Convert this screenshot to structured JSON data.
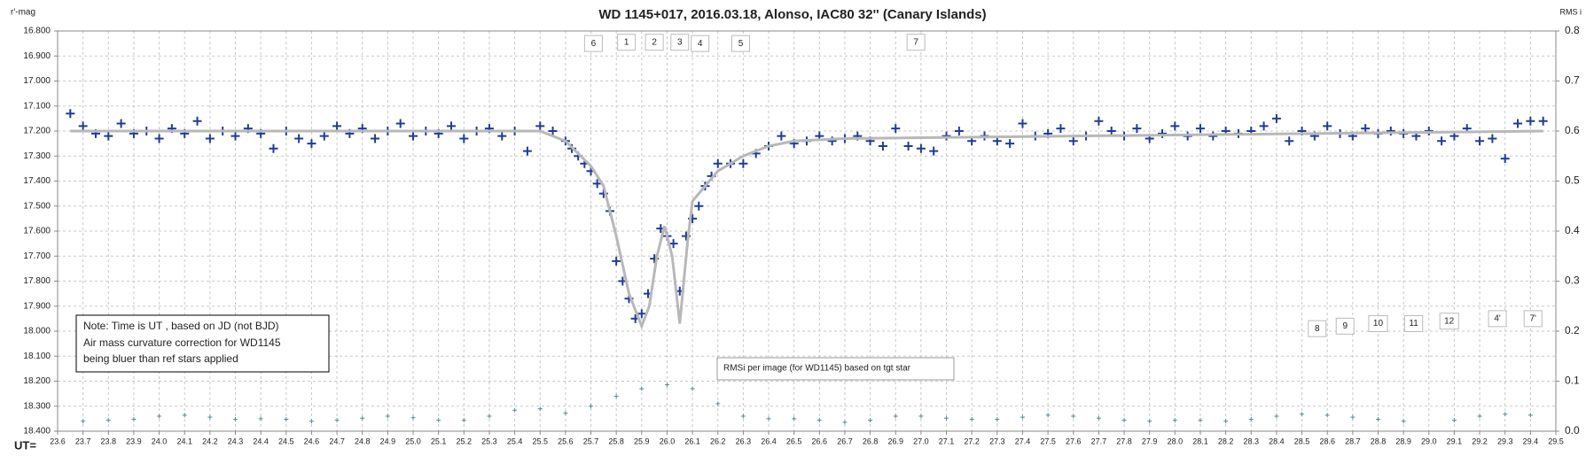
{
  "chart_data": {
    "type": "scatter",
    "title": "WD 1145+017,  2016.03.18,  Alonso,  IAC80  32'' (Canary Islands)",
    "y_label": "r'-mag",
    "y2_label": "RMS i",
    "x_label": "UT=",
    "note": [
      "Note: Time is UT , based on JD (not BJD)",
      "Air mass  curvature correction for WD1145",
      "being bluer than ref stars applied"
    ],
    "rms_note": "RMSi per image (for WD1145) based on tgt star",
    "xlim": [
      23.6,
      29.5
    ],
    "ylim": [
      16.8,
      18.4
    ],
    "y_inverted": true,
    "y2lim": [
      0,
      0.8
    ],
    "grid": true,
    "xticks": [
      23.6,
      23.7,
      23.8,
      23.9,
      {
        "value": 24,
        "label": "24.0"
      },
      24.1,
      24.2,
      24.3,
      24.4,
      24.5,
      24.6,
      24.7,
      24.8,
      24.9,
      {
        "value": 25,
        "label": "25.0"
      },
      25.1,
      25.2,
      25.3,
      25.4,
      25.5,
      25.6,
      25.7,
      25.8,
      25.9,
      {
        "value": 26,
        "label": "26.0"
      },
      26.1,
      26.2,
      26.3,
      26.4,
      26.5,
      26.6,
      26.7,
      26.8,
      26.9,
      {
        "value": 27,
        "label": "27.0"
      },
      27.1,
      27.2,
      27.3,
      27.4,
      27.5,
      27.6,
      27.7,
      27.8,
      27.9,
      {
        "value": 28,
        "label": "28.0"
      },
      28.1,
      28.2,
      28.3,
      28.4,
      28.5,
      28.6,
      28.7,
      28.8,
      28.9,
      {
        "value": 29,
        "label": "29.0"
      },
      29.1,
      29.2,
      29.3,
      29.4,
      29.5
    ],
    "yticks": [
      {
        "value": 16.8,
        "label": "16.800"
      },
      {
        "value": 16.9,
        "label": "16.900"
      },
      {
        "value": 17.0,
        "label": "17.000"
      },
      {
        "value": 17.1,
        "label": "17.100"
      },
      {
        "value": 17.2,
        "label": "17.200"
      },
      {
        "value": 17.3,
        "label": "17.300"
      },
      {
        "value": 17.4,
        "label": "17.400"
      },
      {
        "value": 17.5,
        "label": "17.500"
      },
      {
        "value": 17.6,
        "label": "17.600"
      },
      {
        "value": 17.7,
        "label": "17.700"
      },
      {
        "value": 17.8,
        "label": "17.800"
      },
      {
        "value": 17.9,
        "label": "17.900"
      },
      {
        "value": 18.0,
        "label": "18.000"
      },
      {
        "value": 18.1,
        "label": "18.100"
      },
      {
        "value": 18.2,
        "label": "18.200"
      },
      {
        "value": 18.3,
        "label": "18.300"
      },
      {
        "value": 18.4,
        "label": "18.400"
      }
    ],
    "y2ticks": [
      {
        "value": 0,
        "label": "0.0"
      },
      {
        "value": 0.1,
        "label": "0.1"
      },
      {
        "value": 0.2,
        "label": "0.2"
      },
      {
        "value": 0.3,
        "label": "0.3"
      },
      {
        "value": 0.4,
        "label": "0.4"
      },
      {
        "value": 0.5,
        "label": "0.5"
      },
      {
        "value": 0.6,
        "label": "0.6"
      },
      {
        "value": 0.7,
        "label": "0.7"
      },
      {
        "value": 0.8,
        "label": "0.8"
      }
    ],
    "series": [
      {
        "style": "markers",
        "color": "#1f3c99",
        "x": [
          23.65,
          23.7,
          23.75,
          23.8,
          23.85,
          23.9,
          23.95,
          24.0,
          24.05,
          24.1,
          24.15,
          24.2,
          24.25,
          24.3,
          24.35,
          24.4,
          24.45,
          24.5,
          24.55,
          24.6,
          24.65,
          24.7,
          24.75,
          24.8,
          24.85,
          24.9,
          24.95,
          25.0,
          25.05,
          25.1,
          25.15,
          25.2,
          25.25,
          25.3,
          25.35,
          25.4,
          25.45,
          25.5,
          25.55,
          25.6,
          25.625,
          25.65,
          25.675,
          25.7,
          25.725,
          25.75,
          25.775,
          25.8,
          25.825,
          25.85,
          25.875,
          25.9,
          25.925,
          25.95,
          25.975,
          26.0,
          26.025,
          26.05,
          26.075,
          26.1,
          26.125,
          26.15,
          26.175,
          26.2,
          26.25,
          26.3,
          26.35,
          26.4,
          26.45,
          26.5,
          26.55,
          26.6,
          26.65,
          26.7,
          26.75,
          26.8,
          26.85,
          26.9,
          26.95,
          27.0,
          27.05,
          27.1,
          27.15,
          27.2,
          27.25,
          27.3,
          27.35,
          27.4,
          27.45,
          27.5,
          27.55,
          27.6,
          27.65,
          27.7,
          27.75,
          27.8,
          27.85,
          27.9,
          27.95,
          28.0,
          28.05,
          28.1,
          28.15,
          28.2,
          28.25,
          28.3,
          28.35,
          28.4,
          28.45,
          28.5,
          28.55,
          28.6,
          28.65,
          28.7,
          28.75,
          28.8,
          28.85,
          28.9,
          28.95,
          29.0,
          29.05,
          29.1,
          29.15,
          29.2,
          29.25,
          29.3,
          29.35,
          29.4,
          29.45
        ],
        "values": [
          17.13,
          17.18,
          17.21,
          17.22,
          17.17,
          17.21,
          17.2,
          17.23,
          17.19,
          17.21,
          17.16,
          17.23,
          17.2,
          17.22,
          17.19,
          17.21,
          17.27,
          17.2,
          17.23,
          17.25,
          17.22,
          17.18,
          17.21,
          17.19,
          17.23,
          17.2,
          17.17,
          17.22,
          17.2,
          17.21,
          17.18,
          17.23,
          17.2,
          17.19,
          17.22,
          17.2,
          17.28,
          17.18,
          17.2,
          17.24,
          17.27,
          17.3,
          17.33,
          17.36,
          17.41,
          17.45,
          17.52,
          17.72,
          17.8,
          17.87,
          17.95,
          17.93,
          17.85,
          17.71,
          17.59,
          17.62,
          17.65,
          17.84,
          17.62,
          17.55,
          17.5,
          17.42,
          17.38,
          17.33,
          17.33,
          17.33,
          17.29,
          17.26,
          17.22,
          17.25,
          17.24,
          17.22,
          17.24,
          17.23,
          17.22,
          17.24,
          17.26,
          17.19,
          17.26,
          17.27,
          17.28,
          17.22,
          17.2,
          17.24,
          17.22,
          17.24,
          17.25,
          17.17,
          17.22,
          17.21,
          17.19,
          17.24,
          17.22,
          17.16,
          17.2,
          17.22,
          17.19,
          17.23,
          17.21,
          17.18,
          17.22,
          17.19,
          17.22,
          17.2,
          17.21,
          17.2,
          17.18,
          17.15,
          17.24,
          17.2,
          17.22,
          17.18,
          17.21,
          17.22,
          17.19,
          17.21,
          17.2,
          17.21,
          17.22,
          17.2,
          17.24,
          17.22,
          17.19,
          17.24,
          17.23,
          17.31,
          17.17,
          17.16,
          17.16
        ]
      },
      {
        "style": "line",
        "color": "#b8b8b8",
        "x": [
          23.65,
          25.5,
          25.6,
          25.7,
          25.75,
          25.8,
          25.85,
          25.9,
          25.93,
          25.96,
          25.99,
          26.02,
          26.05,
          26.08,
          26.1,
          26.15,
          26.2,
          26.3,
          26.4,
          26.5,
          26.7,
          29.45
        ],
        "values": [
          17.2,
          17.2,
          17.24,
          17.34,
          17.42,
          17.62,
          17.85,
          17.98,
          17.9,
          17.7,
          17.58,
          17.7,
          17.97,
          17.65,
          17.48,
          17.42,
          17.36,
          17.3,
          17.26,
          17.24,
          17.23,
          17.2
        ]
      },
      {
        "style": "small-markers",
        "color": "#5a8a9a",
        "axis": "y2",
        "x": [
          23.7,
          23.8,
          23.9,
          24.0,
          24.1,
          24.2,
          24.3,
          24.4,
          24.5,
          24.6,
          24.7,
          24.8,
          24.9,
          25.0,
          25.1,
          25.2,
          25.3,
          25.4,
          25.5,
          25.6,
          25.7,
          25.8,
          25.9,
          26.0,
          26.1,
          26.2,
          26.3,
          26.4,
          26.5,
          26.6,
          26.7,
          26.8,
          26.9,
          27.0,
          27.1,
          27.2,
          27.3,
          27.4,
          27.5,
          27.6,
          27.7,
          27.8,
          27.9,
          28.0,
          28.1,
          28.2,
          28.3,
          28.4,
          28.5,
          28.6,
          28.7,
          28.8,
          28.9,
          29.0,
          29.1,
          29.2,
          29.3,
          29.4
        ],
        "values": [
          0.02,
          0.022,
          0.024,
          0.03,
          0.032,
          0.028,
          0.024,
          0.025,
          0.024,
          0.02,
          0.022,
          0.026,
          0.03,
          0.027,
          0.022,
          0.022,
          0.03,
          0.042,
          0.045,
          0.036,
          0.05,
          0.07,
          0.085,
          0.093,
          0.085,
          0.055,
          0.03,
          0.025,
          0.025,
          0.022,
          0.018,
          0.022,
          0.03,
          0.03,
          0.026,
          0.024,
          0.024,
          0.028,
          0.032,
          0.03,
          0.026,
          0.022,
          0.02,
          0.022,
          0.022,
          0.02,
          0.024,
          0.03,
          0.034,
          0.032,
          0.028,
          0.024,
          0.02,
          null,
          0.022,
          0.03,
          0.034,
          0.032
        ]
      }
    ],
    "annotations": [
      {
        "text": "6",
        "x": 25.71,
        "y": 16.85
      },
      {
        "text": "1",
        "x": 25.84,
        "y": 16.845
      },
      {
        "text": "2",
        "x": 25.95,
        "y": 16.845
      },
      {
        "text": "3",
        "x": 26.05,
        "y": 16.845
      },
      {
        "text": "4",
        "x": 26.13,
        "y": 16.85
      },
      {
        "text": "5",
        "x": 26.29,
        "y": 16.85
      },
      {
        "text": "7",
        "x": 26.98,
        "y": 16.845
      },
      {
        "text": "8",
        "x": 28.56,
        "y": 17.99
      },
      {
        "text": "9",
        "x": 28.67,
        "y": 17.98
      },
      {
        "text": "10",
        "x": 28.8,
        "y": 17.97
      },
      {
        "text": "11",
        "x": 28.94,
        "y": 17.97
      },
      {
        "text": "12",
        "x": 29.08,
        "y": 17.96
      },
      {
        "text": "4'",
        "x": 29.27,
        "y": 17.95
      },
      {
        "text": "7'",
        "x": 29.41,
        "y": 17.95
      }
    ]
  }
}
